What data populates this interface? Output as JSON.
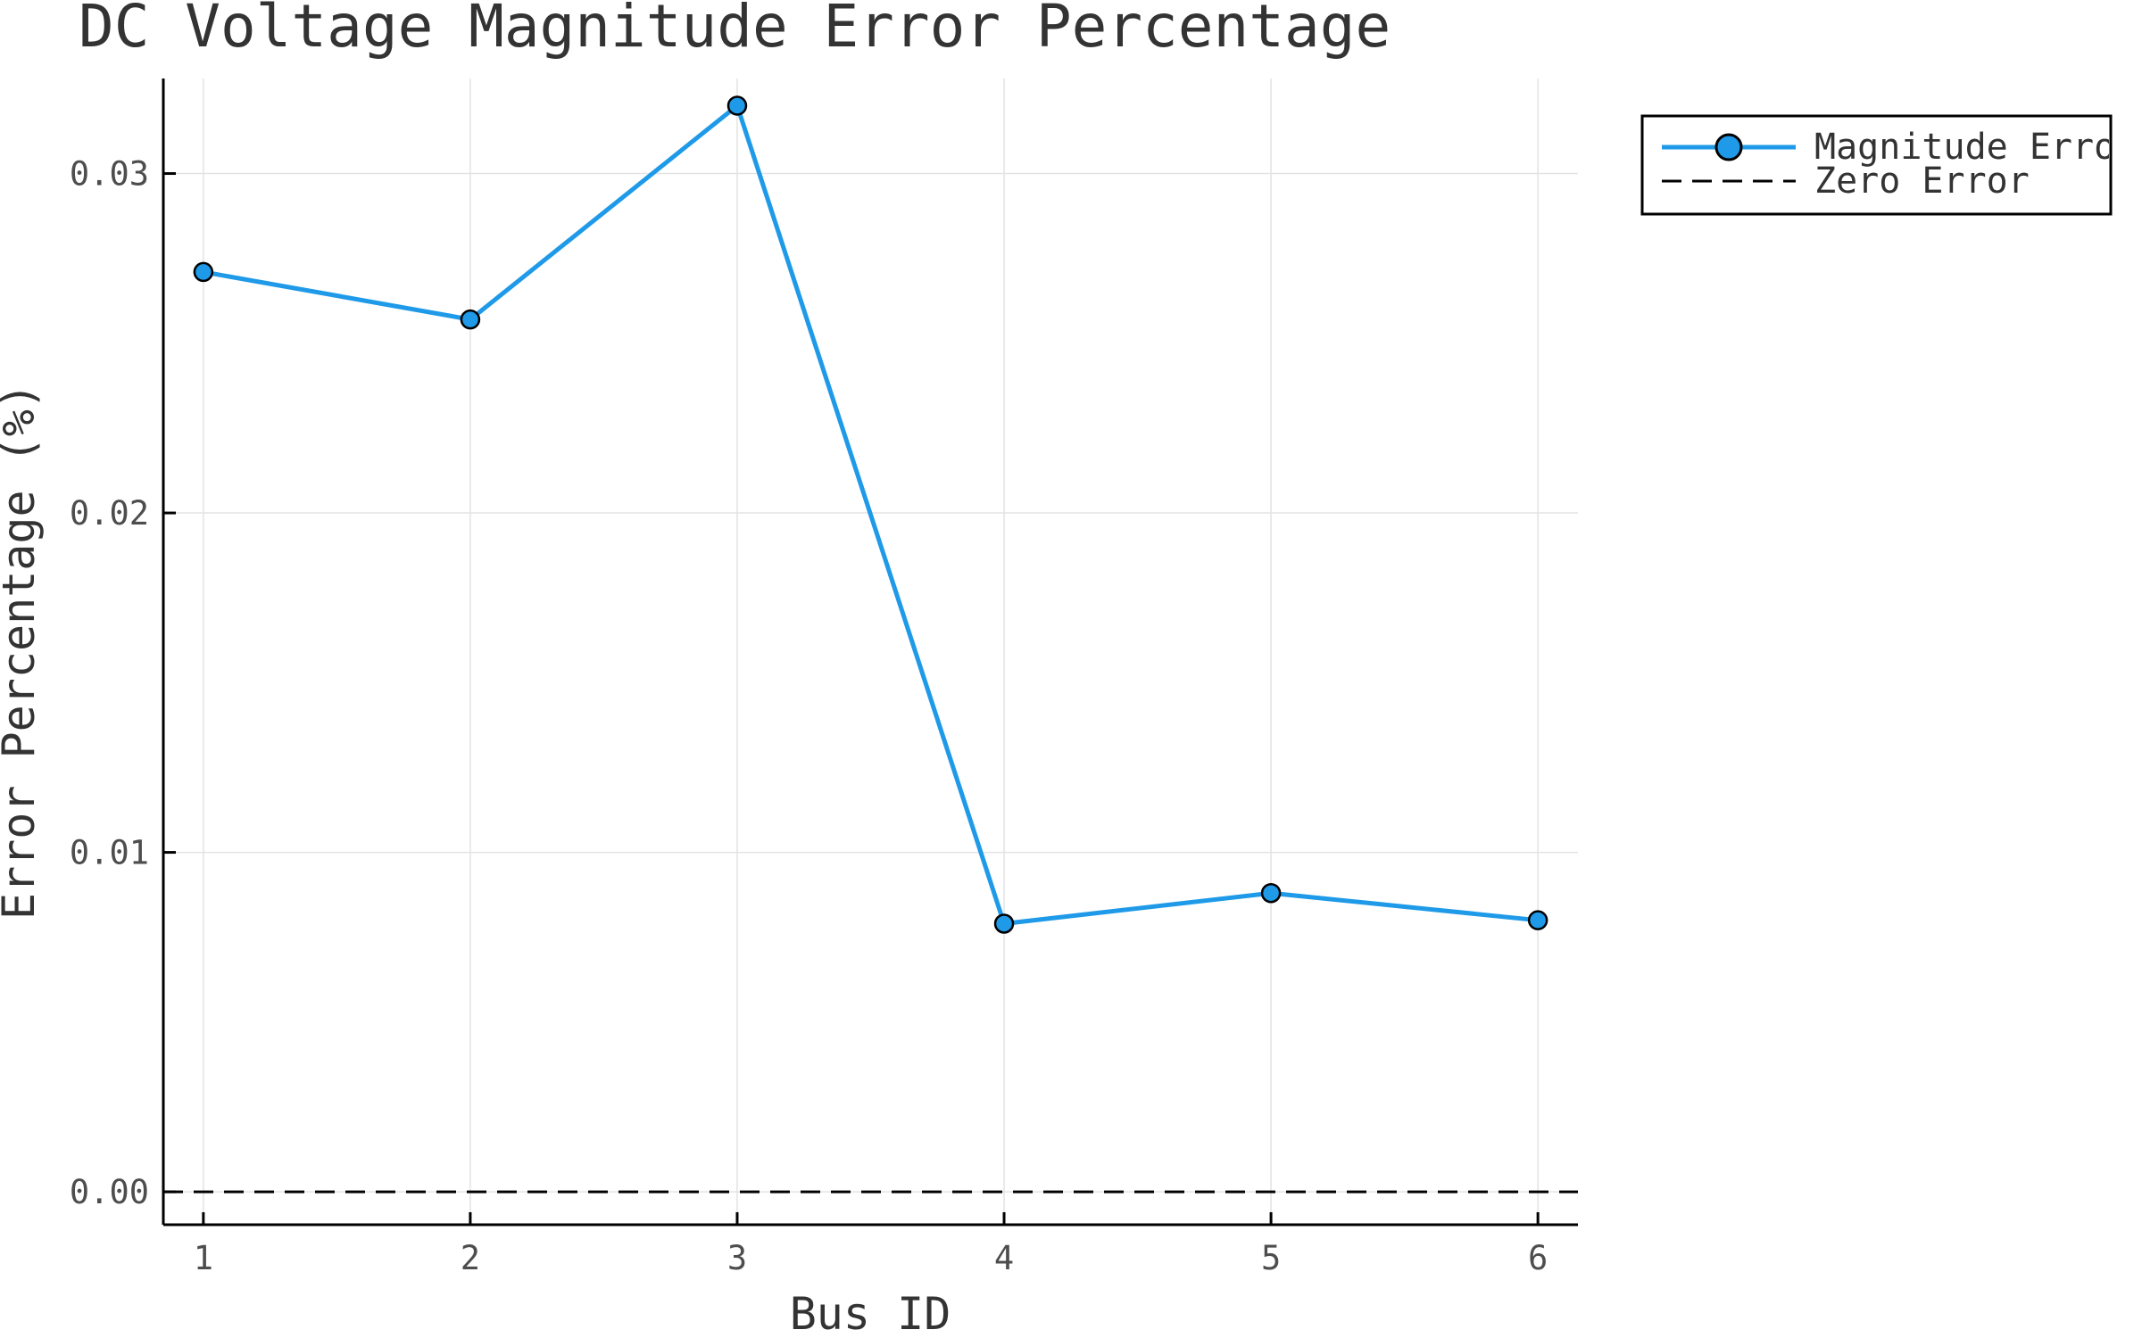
{
  "chart_data": {
    "type": "line",
    "title": "DC Voltage Magnitude Error Percentage",
    "xlabel": "Bus ID",
    "ylabel": "Error Percentage (%)",
    "x": [
      1,
      2,
      3,
      4,
      5,
      6
    ],
    "xlim": [
      0.85,
      6.15
    ],
    "ylim": [
      -0.00097,
      0.0328
    ],
    "x_ticks": [
      1,
      2,
      3,
      4,
      5,
      6
    ],
    "x_tick_labels": [
      "1",
      "2",
      "3",
      "4",
      "5",
      "6"
    ],
    "y_ticks": [
      0.0,
      0.01,
      0.02,
      0.03
    ],
    "y_tick_labels": [
      "0.00",
      "0.01",
      "0.02",
      "0.03"
    ],
    "grid": true,
    "legend_position": "outer top-right",
    "series": [
      {
        "name": "Magnitude Error",
        "values": [
          0.0271,
          0.0257,
          0.032,
          0.0079,
          0.0088,
          0.008
        ],
        "color": "#1f9ae8",
        "marker": "circle",
        "line_style": "solid"
      },
      {
        "name": "Zero Error",
        "values": [
          0,
          0,
          0,
          0,
          0,
          0
        ],
        "color": "#000000",
        "marker": "none",
        "line_style": "dashed"
      }
    ]
  }
}
